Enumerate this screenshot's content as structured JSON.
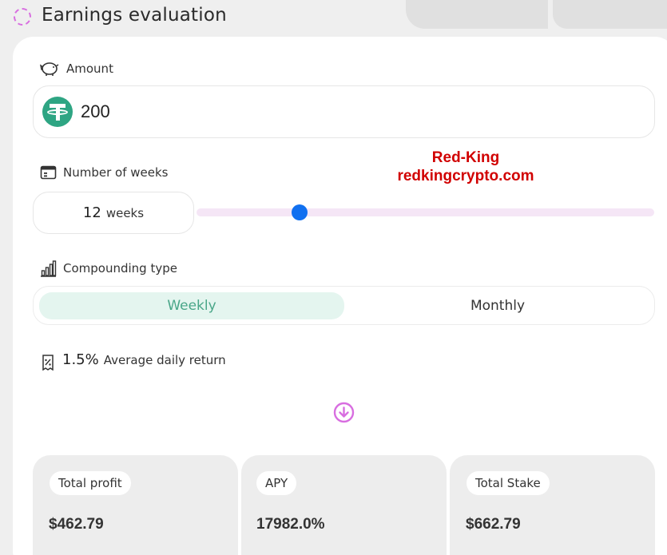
{
  "header": {
    "title": "Earnings evaluation"
  },
  "amount": {
    "label": "Amount",
    "value": "200",
    "token_icon": "usdt-tether-icon"
  },
  "watermark": {
    "line1": "Red-King",
    "line2": "redkingcrypto.com"
  },
  "weeks": {
    "label": "Number of weeks",
    "value": "12",
    "unit": "weeks",
    "slider_fraction": 0.23
  },
  "compounding": {
    "label": "Compounding type",
    "options": [
      "Weekly",
      "Monthly"
    ],
    "selected": "Weekly"
  },
  "daily_return": {
    "value": "1.5%",
    "label": "Average daily return"
  },
  "stats": [
    {
      "label": "Total profit",
      "value": "$462.79"
    },
    {
      "label": "APY",
      "value": "17982.0%"
    },
    {
      "label": "Total Stake",
      "value": "$662.79"
    }
  ],
  "colors": {
    "accent": "#d86ee0",
    "slider_thumb": "#1170f0",
    "toggle_active_bg": "#e4f5ef",
    "toggle_active_text": "#49a688",
    "usdt": "#2ea583",
    "watermark": "#d10000"
  }
}
